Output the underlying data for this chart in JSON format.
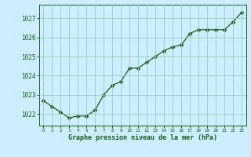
{
  "x": [
    0,
    1,
    2,
    3,
    4,
    5,
    6,
    7,
    8,
    9,
    10,
    11,
    12,
    13,
    14,
    15,
    16,
    17,
    18,
    19,
    20,
    21,
    22,
    23
  ],
  "y": [
    1022.7,
    1022.4,
    1022.1,
    1021.8,
    1021.9,
    1021.9,
    1022.2,
    1023.0,
    1023.5,
    1023.7,
    1024.4,
    1024.4,
    1024.7,
    1025.0,
    1025.3,
    1025.5,
    1025.6,
    1026.2,
    1026.4,
    1026.4,
    1026.4,
    1026.4,
    1026.8,
    1027.3
  ],
  "line_color": "#1a5c1a",
  "marker": "D",
  "marker_size": 2.5,
  "bg_color": "#cceeff",
  "grid_color": "#99ccbb",
  "xlabel": "Graphe pression niveau de la mer (hPa)",
  "xlabel_color": "#1a5c1a",
  "tick_color": "#1a5c1a",
  "ytick_values": [
    1022,
    1023,
    1024,
    1025,
    1026,
    1027
  ],
  "xtick_labels": [
    "0",
    "1",
    "2",
    "3",
    "4",
    "5",
    "6",
    "7",
    "8",
    "9",
    "10",
    "11",
    "12",
    "13",
    "14",
    "15",
    "16",
    "17",
    "18",
    "19",
    "20",
    "21",
    "22",
    "23"
  ],
  "ylim": [
    1021.4,
    1027.7
  ],
  "xlim": [
    -0.5,
    23.5
  ]
}
